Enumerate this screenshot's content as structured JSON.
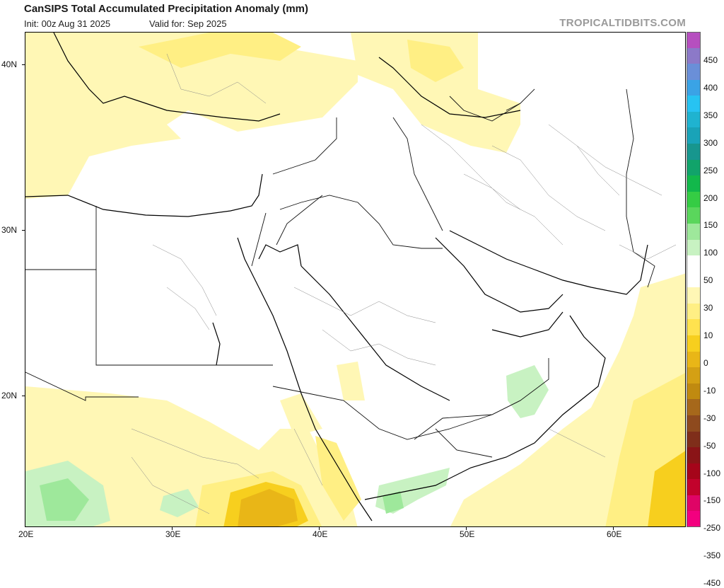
{
  "header": {
    "title": "CanSIPS Total Accumulated Precipitation Anomaly (mm)",
    "init": "Init: 00z Aug 31 2025",
    "valid": "Valid for: Sep 2025",
    "site": "TROPICALTIDBITS.COM"
  },
  "map": {
    "lon_labels": [
      "20E",
      "30E",
      "40E",
      "50E",
      "60E"
    ],
    "lat_labels": [
      "40N",
      "30N",
      "20N"
    ]
  },
  "legend": {
    "labels": [
      "450",
      "400",
      "350",
      "300",
      "250",
      "200",
      "150",
      "100",
      "50",
      "30",
      "10",
      "0",
      "-10",
      "-30",
      "-50",
      "-100",
      "-150",
      "-250",
      "-350",
      "-450"
    ],
    "colors": [
      "#b64fbf",
      "#8c79c8",
      "#6a8fd8",
      "#3aa3e6",
      "#27c3f2",
      "#1fb3d0",
      "#19a3b8",
      "#17968e",
      "#11a36a",
      "#12b84b",
      "#35cc44",
      "#5ad65c",
      "#9ee89b",
      "#c8f2c2",
      "#ffffff",
      "#ffffff",
      "#fff7b5",
      "#ffef84",
      "#ffe24f",
      "#f7cf1e",
      "#e9b617",
      "#d4a014",
      "#c08a10",
      "#a6681b",
      "#8e4a1e",
      "#7f2e1a",
      "#8a1417",
      "#a5051a",
      "#c2022c",
      "#df0466",
      "#f3007f"
    ]
  }
}
